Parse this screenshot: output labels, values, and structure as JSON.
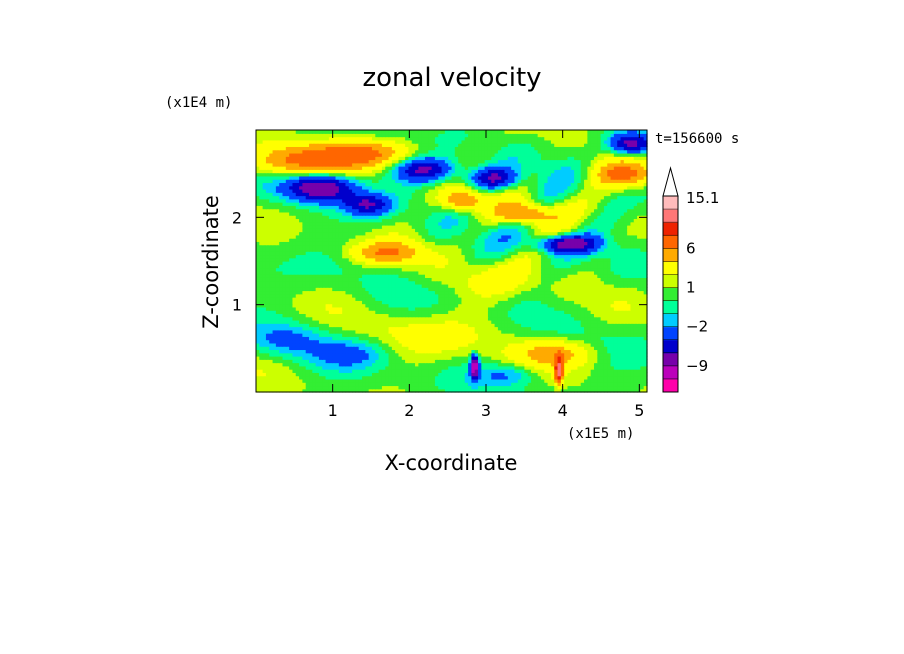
{
  "chart_data": {
    "type": "heatmap",
    "title": "zonal velocity",
    "xlabel": "X-coordinate",
    "ylabel": "Z-coordinate",
    "x_unit": "(x1E5 m)",
    "y_unit": "(x1E4 m)",
    "time_label": "t=156600 s",
    "xlim": [
      0,
      5.1
    ],
    "ylim": [
      0,
      3.0
    ],
    "x_ticks": [
      1,
      2,
      3,
      4,
      5
    ],
    "y_ticks": [
      1,
      2
    ],
    "x_tick_labels": [
      "1",
      "2",
      "3",
      "4",
      "5"
    ],
    "y_tick_labels": [
      "1",
      "2"
    ],
    "colorbar": {
      "levels": [
        -15,
        -12,
        -9,
        -6,
        -4,
        -2,
        -1,
        0,
        1,
        2,
        4,
        6,
        9,
        12,
        15.1
      ],
      "colors": [
        "#ff00aa",
        "#bb00bb",
        "#7700aa",
        "#0000cc",
        "#0044ff",
        "#00ccff",
        "#00ff99",
        "#33ee33",
        "#ccff00",
        "#ffff00",
        "#ffaa00",
        "#ff6600",
        "#ee2200",
        "#ff7777",
        "#ffbbbb"
      ],
      "labels": [
        {
          "value": 15.1,
          "text": "15.1"
        },
        {
          "value": 6,
          "text": "6"
        },
        {
          "value": 1,
          "text": "1"
        },
        {
          "value": -2,
          "text": "−2"
        },
        {
          "value": -9,
          "text": "−9"
        }
      ],
      "extend_top": true
    },
    "grid": false,
    "legend": "right"
  }
}
